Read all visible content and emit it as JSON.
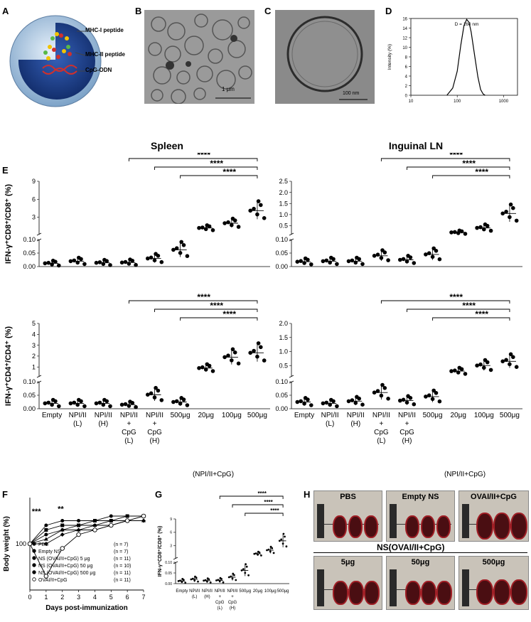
{
  "panels": {
    "a": {
      "letter": "A",
      "labels": [
        "MHC-I peptide",
        "MHC-II peptide",
        "CpG-ODN"
      ]
    },
    "b": {
      "letter": "B",
      "scale": "1 μm"
    },
    "c": {
      "letter": "C",
      "scale": "100 nm"
    },
    "d": {
      "letter": "D"
    },
    "e": {
      "letter": "E",
      "title_left": "Spleen",
      "title_right": "Inguinal LN"
    },
    "f": {
      "letter": "F"
    },
    "g": {
      "letter": "G"
    },
    "h": {
      "letter": "H",
      "photos": [
        "PBS",
        "Empty NS",
        "OVAI/II+CpG",
        "5μg",
        "50μg",
        "500μg"
      ],
      "group_label": "NS(OVAI/II+CpG)"
    }
  },
  "colors": {
    "nanoparticle_shell": "#b9d3ea",
    "nanoparticle_core": "#1d3f8a",
    "spleen": "#4a0e12"
  },
  "chart_data": [
    {
      "id": "D",
      "type": "line",
      "title": "",
      "xlabel": "",
      "ylabel": "Intensity (%)",
      "x_scale": "log",
      "xlim": [
        10,
        2000
      ],
      "ylim": [
        0,
        16
      ],
      "xticks": [
        "10",
        "100",
        "1000"
      ],
      "yticks": [
        "0",
        "2",
        "4",
        "6",
        "8",
        "10",
        "12",
        "14",
        "16"
      ],
      "annotation": "D = 160 nm",
      "series": [
        {
          "x": [
            60,
            80,
            100,
            120,
            140,
            160,
            180,
            200,
            240,
            280,
            320,
            360,
            400
          ],
          "y": [
            0,
            1.5,
            5.0,
            10.5,
            14.5,
            15.8,
            15.2,
            13.2,
            8.0,
            3.8,
            1.2,
            0.3,
            0
          ]
        }
      ]
    },
    {
      "id": "E-spleen-CD8",
      "type": "scatter",
      "ylabel": "IFN-γ⁺CD8⁺/CD8⁺ (%)",
      "yticks_low": [
        "0.00",
        "0.05",
        "0.10"
      ],
      "yticks_high": [
        "3",
        "6",
        "9"
      ],
      "categories": [
        "Empty",
        "NPI/II (L)",
        "NPI/II (H)",
        "NPI/II+CpG (L)",
        "NPI/II+CpG (H)",
        "500μg NS(NPI/II)",
        "20μg",
        "100μg",
        "500μg"
      ],
      "means": [
        0.012,
        0.02,
        0.014,
        0.015,
        0.03,
        0.062,
        1.2,
        2.0,
        4.1
      ],
      "significance": [
        "****",
        "****",
        "****"
      ]
    },
    {
      "id": "E-LN-CD8",
      "type": "scatter",
      "yticks_low": [
        "0.00",
        "0.05",
        "0.10"
      ],
      "yticks_high": [
        "0.5",
        "1.0",
        "1.5",
        "2.0",
        "2.5"
      ],
      "categories": [
        "Empty",
        "NPI/II (L)",
        "NPI/II (H)",
        "NPI/II+CpG (L)",
        "NPI/II+CpG (H)",
        "500μg NS(NPI/II)",
        "20μg",
        "100μg",
        "500μg"
      ],
      "means": [
        0.018,
        0.02,
        0.02,
        0.04,
        0.025,
        0.045,
        0.2,
        0.4,
        1.05
      ],
      "significance": [
        "****",
        "****",
        "****"
      ]
    },
    {
      "id": "E-spleen-CD4",
      "type": "scatter",
      "ylabel": "IFN-γ⁺CD4⁺/CD4⁺ (%)",
      "yticks_low": [
        "0.00",
        "0.05",
        "0.10"
      ],
      "yticks_high": [
        "1",
        "2",
        "3",
        "4",
        "5"
      ],
      "categories": [
        "Empty",
        "NPI/II (L)",
        "NPI/II (H)",
        "NPI/II+CpG (L)",
        "NPI/II+CpG (H)",
        "500μg NS(NPI/II)",
        "20μg",
        "100μg",
        "500μg"
      ],
      "means": [
        0.02,
        0.02,
        0.02,
        0.015,
        0.052,
        0.025,
        0.9,
        1.9,
        2.3
      ],
      "significance": [
        "****",
        "****",
        "****"
      ]
    },
    {
      "id": "E-LN-CD4",
      "type": "scatter",
      "yticks_low": [
        "0.00",
        "0.05",
        "0.10"
      ],
      "yticks_high": [
        "0.5",
        "1.0",
        "1.5",
        "2.0"
      ],
      "categories": [
        "Empty",
        "NPI/II (L)",
        "NPI/II (H)",
        "NPI/II+CpG (L)",
        "NPI/II+CpG (H)",
        "500μg NS(NPI/II)",
        "20μg",
        "100μg",
        "500μg"
      ],
      "means": [
        0.025,
        0.02,
        0.028,
        0.06,
        0.03,
        0.045,
        0.3,
        0.5,
        0.65
      ],
      "significance": [
        "****",
        "****",
        "****"
      ]
    },
    {
      "id": "F",
      "type": "line",
      "xlabel": "Days post-immunization",
      "ylabel": "Body weight (%)",
      "xlim": [
        0,
        7
      ],
      "ylim": [
        90,
        110
      ],
      "yticks": [
        "100"
      ],
      "xticks": [
        "0",
        "1",
        "2",
        "3",
        "4",
        "5",
        "6",
        "7"
      ],
      "annotations": [
        "***",
        "**"
      ],
      "series": [
        {
          "name": "PBS",
          "n": "(n = 7)",
          "x": [
            0,
            1,
            2,
            3,
            4,
            5,
            6,
            7
          ],
          "y": [
            100,
            104,
            105,
            105,
            105,
            106,
            106,
            106
          ]
        },
        {
          "name": "Empty NS",
          "n": "(n = 7)",
          "x": [
            0,
            1,
            2,
            3,
            4,
            5,
            6,
            7
          ],
          "y": [
            100,
            103,
            104,
            104,
            105,
            105,
            106,
            106
          ]
        },
        {
          "name": "NS (OVAI/II+CpG) 5 μg",
          "n": "(n = 11)",
          "x": [
            0,
            1,
            2,
            3,
            4,
            5,
            6,
            7
          ],
          "y": [
            100,
            102,
            103,
            104,
            104,
            105,
            105,
            106
          ]
        },
        {
          "name": "NS (OVAI/II+CpG) 50 μg",
          "n": "(n = 10)",
          "x": [
            0,
            1,
            2,
            3,
            4,
            5,
            6,
            7
          ],
          "y": [
            100,
            101,
            103,
            103,
            104,
            104,
            105,
            105
          ]
        },
        {
          "name": "NS (OVAI/II+CpG) 500 μg",
          "n": "(n = 11)",
          "x": [
            0,
            1,
            2,
            3,
            4,
            5,
            6,
            7
          ],
          "y": [
            100,
            100,
            102,
            103,
            103,
            104,
            105,
            105
          ]
        },
        {
          "name": "OVAI/II+CpG",
          "n": "(n = 11)",
          "x": [
            0,
            1,
            2,
            3,
            4,
            5,
            6,
            7
          ],
          "y": [
            100,
            93,
            99,
            102,
            103,
            104,
            105,
            106
          ]
        }
      ]
    },
    {
      "id": "G",
      "type": "scatter",
      "ylabel": "IFN-γ⁺CD8⁺/CD8⁺ (%)",
      "yticks_low": [
        "0.00",
        "0.05",
        "0.10"
      ],
      "yticks_high": [
        "3",
        "6",
        "9"
      ],
      "categories": [
        "Empty",
        "NPI/II (L)",
        "NPI/II (H)",
        "NPI/II+CpG (L)",
        "NPI/II+CpG (H)",
        "500μg NS(NPI/II)",
        "20μg",
        "100μg",
        "500μg"
      ],
      "means": [
        0.012,
        0.02,
        0.014,
        0.015,
        0.03,
        0.062,
        1.2,
        2.0,
        4.1
      ],
      "significance": [
        "****",
        "****",
        "****"
      ]
    }
  ]
}
